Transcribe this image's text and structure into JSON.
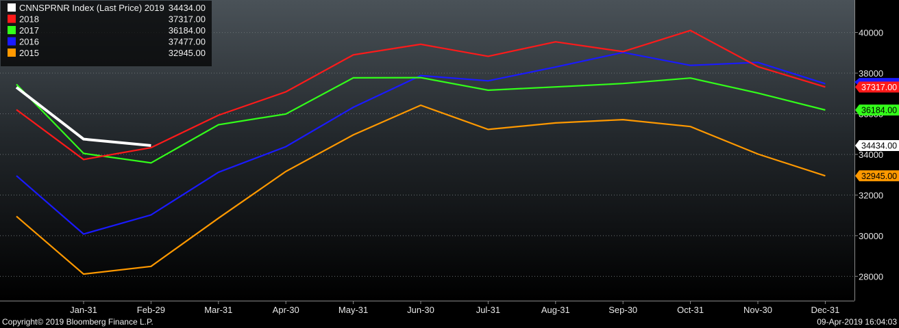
{
  "chart_data": {
    "type": "line",
    "categories": [
      "Jan-31",
      "Feb-29",
      "Mar-31",
      "Apr-30",
      "May-31",
      "Jun-30",
      "Jul-31",
      "Aug-31",
      "Sep-30",
      "Oct-31",
      "Nov-30",
      "Dec-31"
    ],
    "ylim": [
      26800,
      41600
    ],
    "yticks": [
      28000,
      30000,
      32000,
      34000,
      36000,
      38000,
      40000
    ],
    "grid": "horizontal-dotted",
    "legend": "top-left",
    "series": [
      {
        "name": "CNNSPRNR Index (Last Price) 2019",
        "last_label": "34434.00",
        "color": "#ffffff",
        "start": 37300,
        "values": [
          34750,
          34434,
          null,
          null,
          null,
          null,
          null,
          null,
          null,
          null,
          null,
          null
        ]
      },
      {
        "name": "2018",
        "last_label": "37317.00",
        "color": "#ff1a1a",
        "start": 36200,
        "values": [
          33750,
          34330,
          35930,
          37080,
          38900,
          39420,
          38830,
          39540,
          39060,
          40100,
          38320,
          37317
        ]
      },
      {
        "name": "2017",
        "last_label": "36184.00",
        "color": "#33ff1a",
        "start": 37450,
        "values": [
          34050,
          33580,
          35460,
          35990,
          37770,
          37780,
          37160,
          37320,
          37490,
          37760,
          37020,
          36184
        ]
      },
      {
        "name": "2016",
        "last_label": "37477.00",
        "color": "#1a1aff",
        "start": 32950,
        "values": [
          30080,
          31020,
          33120,
          34380,
          36320,
          37880,
          37620,
          38300,
          39020,
          38380,
          38530,
          37477
        ]
      },
      {
        "name": "2015",
        "last_label": "32945.00",
        "color": "#ff9900",
        "start": 30950,
        "values": [
          28110,
          28490,
          30860,
          33160,
          34960,
          36420,
          35230,
          35550,
          35710,
          35370,
          34020,
          32945
        ]
      }
    ],
    "axis_tags": [
      {
        "text": "37317.00",
        "value": 37317,
        "bg": "#ff1a1a",
        "fg": "#ffffff"
      },
      {
        "text": "36184.00",
        "value": 36184,
        "bg": "#33ff1a",
        "fg": "#000000"
      },
      {
        "text": "34434.00",
        "value": 34434,
        "bg": "#ffffff",
        "fg": "#000000"
      },
      {
        "text": "32945.00",
        "value": 32945,
        "bg": "#ff9900",
        "fg": "#000000"
      }
    ],
    "axis_marker_2016": {
      "value": 37560,
      "color": "#1a1aff"
    }
  },
  "footer": {
    "copyright": "Copyright© 2019 Bloomberg Finance L.P.",
    "timestamp": "09-Apr-2019 16:04:03"
  }
}
